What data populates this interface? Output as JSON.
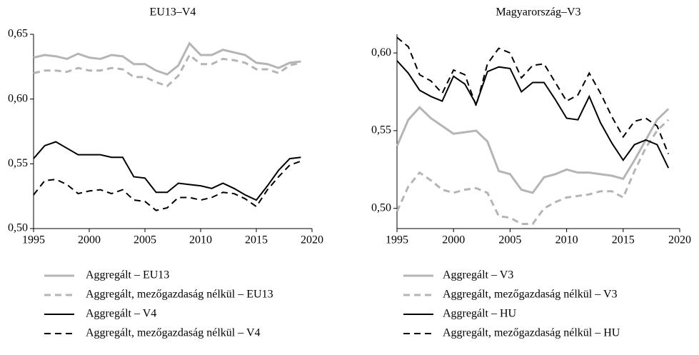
{
  "chart_data": [
    {
      "type": "line",
      "title": "EU13–V4",
      "x": [
        1995,
        1996,
        1997,
        1998,
        1999,
        2000,
        2001,
        2002,
        2003,
        2004,
        2005,
        2006,
        2007,
        2008,
        2009,
        2010,
        2011,
        2012,
        2013,
        2014,
        2015,
        2016,
        2017,
        2018,
        2019
      ],
      "xlim": [
        1995,
        2020
      ],
      "xticks": [
        1995,
        2000,
        2005,
        2010,
        2015,
        2020
      ],
      "ylim": [
        0.5,
        0.65
      ],
      "yticks": [
        {
          "value": 0.5,
          "label": "0,50"
        },
        {
          "value": 0.55,
          "label": "0,55"
        },
        {
          "value": 0.6,
          "label": "0,60"
        },
        {
          "value": 0.65,
          "label": "0,65"
        }
      ],
      "series": [
        {
          "name": "Aggregált – EU13",
          "color": "#b5b5b5",
          "dashed": false,
          "values": [
            0.632,
            0.634,
            0.633,
            0.631,
            0.635,
            0.632,
            0.631,
            0.634,
            0.633,
            0.627,
            0.627,
            0.622,
            0.619,
            0.626,
            0.643,
            0.634,
            0.634,
            0.638,
            0.636,
            0.634,
            0.628,
            0.627,
            0.624,
            0.628,
            0.629
          ]
        },
        {
          "name": "Aggregált, mezőgazdaság nélkül – EU13",
          "color": "#b5b5b5",
          "dashed": true,
          "values": [
            0.62,
            0.622,
            0.622,
            0.621,
            0.624,
            0.622,
            0.622,
            0.624,
            0.623,
            0.617,
            0.617,
            0.613,
            0.61,
            0.618,
            0.634,
            0.627,
            0.627,
            0.631,
            0.63,
            0.628,
            0.623,
            0.623,
            0.62,
            0.626,
            0.628
          ]
        },
        {
          "name": "Aggregált – V4",
          "color": "#000000",
          "dashed": false,
          "values": [
            0.554,
            0.564,
            0.567,
            0.562,
            0.557,
            0.557,
            0.557,
            0.555,
            0.555,
            0.54,
            0.539,
            0.528,
            0.528,
            0.535,
            0.534,
            0.533,
            0.531,
            0.535,
            0.531,
            0.526,
            0.522,
            0.533,
            0.545,
            0.554,
            0.555
          ]
        },
        {
          "name": "Aggregált, mezőgazdaság nélkül – V4",
          "color": "#000000",
          "dashed": true,
          "values": [
            0.526,
            0.537,
            0.538,
            0.534,
            0.527,
            0.529,
            0.53,
            0.527,
            0.53,
            0.522,
            0.521,
            0.514,
            0.516,
            0.524,
            0.524,
            0.522,
            0.524,
            0.528,
            0.527,
            0.523,
            0.517,
            0.53,
            0.54,
            0.549,
            0.552
          ]
        }
      ]
    },
    {
      "type": "line",
      "title": "Magyarország–V3",
      "x": [
        1995,
        1996,
        1997,
        1998,
        1999,
        2000,
        2001,
        2002,
        2003,
        2004,
        2005,
        2006,
        2007,
        2008,
        2009,
        2010,
        2011,
        2012,
        2013,
        2014,
        2015,
        2016,
        2017,
        2018,
        2019
      ],
      "xlim": [
        1995,
        2020
      ],
      "xticks": [
        1995,
        2000,
        2005,
        2010,
        2015,
        2020
      ],
      "ylim": [
        0.487,
        0.612
      ],
      "yticks": [
        {
          "value": 0.5,
          "label": "0,50"
        },
        {
          "value": 0.55,
          "label": "0,55"
        },
        {
          "value": 0.6,
          "label": "0,60"
        }
      ],
      "series": [
        {
          "name": "Aggregált – V3",
          "color": "#b5b5b5",
          "dashed": false,
          "values": [
            0.54,
            0.557,
            0.565,
            0.558,
            0.553,
            0.548,
            0.549,
            0.55,
            0.543,
            0.524,
            0.522,
            0.512,
            0.51,
            0.52,
            0.522,
            0.525,
            0.523,
            0.523,
            0.522,
            0.521,
            0.519,
            0.531,
            0.544,
            0.557,
            0.564
          ]
        },
        {
          "name": "Aggregált, mezőgazdaság nélkül – V3",
          "color": "#b5b5b5",
          "dashed": true,
          "values": [
            0.498,
            0.514,
            0.523,
            0.518,
            0.512,
            0.51,
            0.512,
            0.513,
            0.51,
            0.495,
            0.494,
            0.49,
            0.49,
            0.5,
            0.504,
            0.507,
            0.508,
            0.509,
            0.511,
            0.511,
            0.507,
            0.524,
            0.539,
            0.55,
            0.557
          ]
        },
        {
          "name": "Aggregált – HU",
          "color": "#000000",
          "dashed": false,
          "values": [
            0.595,
            0.587,
            0.576,
            0.572,
            0.569,
            0.585,
            0.58,
            0.567,
            0.588,
            0.591,
            0.59,
            0.575,
            0.581,
            0.581,
            0.57,
            0.558,
            0.557,
            0.572,
            0.555,
            0.542,
            0.531,
            0.541,
            0.544,
            0.541,
            0.526
          ]
        },
        {
          "name": "Aggregált, mezőgazdaság nélkül – HU",
          "color": "#000000",
          "dashed": true,
          "values": [
            0.61,
            0.604,
            0.586,
            0.582,
            0.574,
            0.589,
            0.586,
            0.566,
            0.593,
            0.603,
            0.6,
            0.584,
            0.592,
            0.593,
            0.581,
            0.569,
            0.573,
            0.587,
            0.574,
            0.559,
            0.546,
            0.556,
            0.558,
            0.553,
            0.535
          ]
        }
      ]
    }
  ]
}
